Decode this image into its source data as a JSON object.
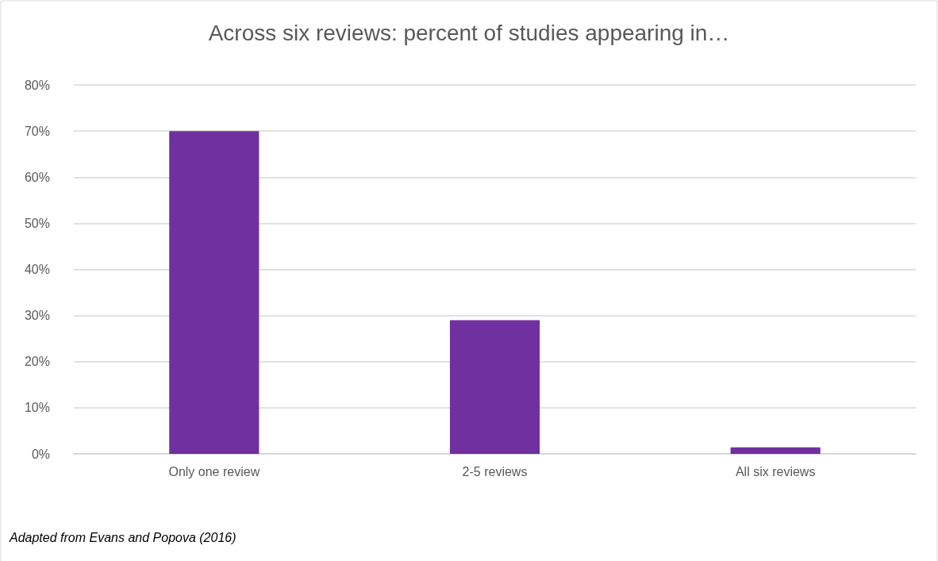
{
  "chart_data": {
    "type": "bar",
    "title": "Across six reviews: percent of studies appearing in…",
    "categories": [
      "Only one review",
      "2-5 reviews",
      "All six reviews"
    ],
    "values": [
      70,
      29,
      1.4
    ],
    "color": "#7030a0",
    "ylim": [
      0,
      80
    ],
    "yticks": [
      {
        "value": 0,
        "label": "0%"
      },
      {
        "value": 10,
        "label": "10%"
      },
      {
        "value": 20,
        "label": "20%"
      },
      {
        "value": 30,
        "label": "30%"
      },
      {
        "value": 40,
        "label": "40%"
      },
      {
        "value": 50,
        "label": "50%"
      },
      {
        "value": 60,
        "label": "60%"
      },
      {
        "value": 70,
        "label": "70%"
      },
      {
        "value": 80,
        "label": "80%"
      }
    ],
    "grid": true,
    "annotations": [
      "Adapted from Evans and Popova (2016)"
    ]
  }
}
